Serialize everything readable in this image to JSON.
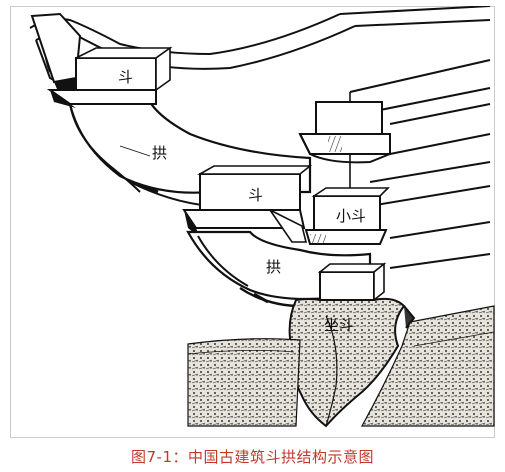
{
  "figure": {
    "caption": "图7-1：中国古建筑斗拱结构示意图",
    "labels": {
      "dou_top": "斗",
      "gong_upper": "拱",
      "dou_middle": "斗",
      "xiao_dou": "小斗",
      "gong_lower": "拱",
      "zuo_dou": "坐斗"
    }
  }
}
